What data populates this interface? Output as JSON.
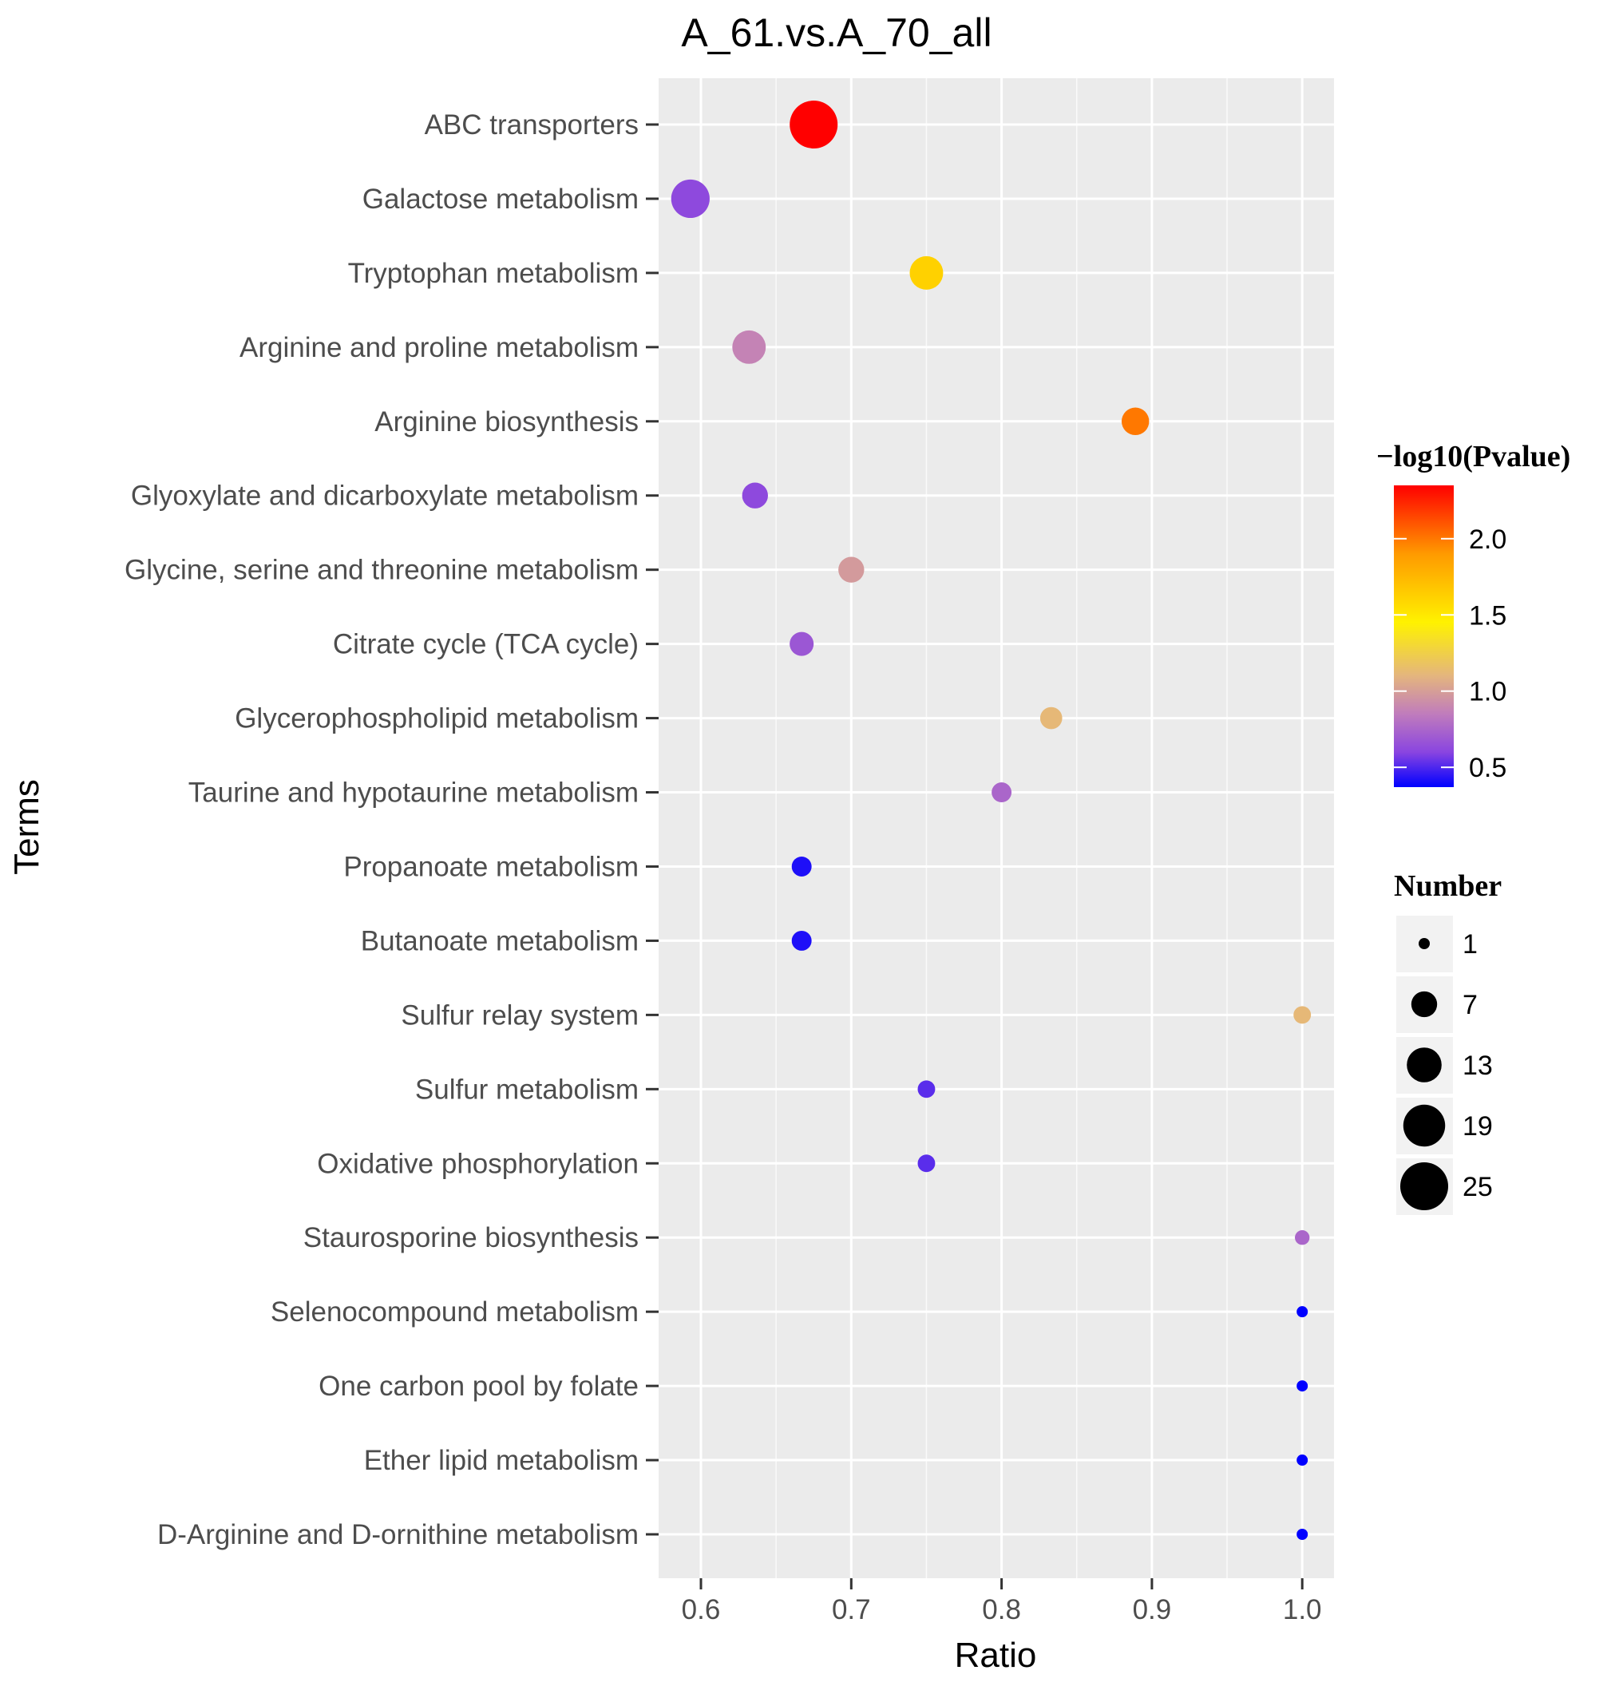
{
  "chart_data": {
    "type": "scatter",
    "title": "A_61.vs.A_70_all",
    "xlabel": "Ratio",
    "ylabel": "Terms",
    "xlim": [
      0.57,
      1.02
    ],
    "xticks": [
      0.6,
      0.7,
      0.8,
      0.9,
      1.0
    ],
    "xtick_labels": [
      "0.6",
      "0.7",
      "0.8",
      "0.9",
      "1.0"
    ],
    "grid": true,
    "legend_position": "right",
    "points": [
      {
        "term": "ABC transporters",
        "ratio": 0.675,
        "number": 25,
        "neglog10p": 2.35
      },
      {
        "term": "Galactose metabolism",
        "ratio": 0.593,
        "number": 16,
        "neglog10p": 0.62
      },
      {
        "term": "Tryptophan metabolism",
        "ratio": 0.75,
        "number": 12,
        "neglog10p": 1.62
      },
      {
        "term": "Arginine and proline metabolism",
        "ratio": 0.632,
        "number": 12,
        "neglog10p": 0.88
      },
      {
        "term": "Arginine biosynthesis",
        "ratio": 0.889,
        "number": 8,
        "neglog10p": 2.0
      },
      {
        "term": "Glyoxylate and dicarboxylate metabolism",
        "ratio": 0.636,
        "number": 7,
        "neglog10p": 0.62
      },
      {
        "term": "Glycine, serine and threonine metabolism",
        "ratio": 0.7,
        "number": 7,
        "neglog10p": 0.98
      },
      {
        "term": "Citrate cycle (TCA cycle)",
        "ratio": 0.667,
        "number": 6,
        "neglog10p": 0.68
      },
      {
        "term": "Glycerophospholipid metabolism",
        "ratio": 0.833,
        "number": 5,
        "neglog10p": 1.12
      },
      {
        "term": "Taurine and hypotaurine metabolism",
        "ratio": 0.8,
        "number": 4,
        "neglog10p": 0.75
      },
      {
        "term": "Propanoate metabolism",
        "ratio": 0.667,
        "number": 4,
        "neglog10p": 0.42
      },
      {
        "term": "Butanoate metabolism",
        "ratio": 0.667,
        "number": 4,
        "neglog10p": 0.42
      },
      {
        "term": "Sulfur relay system",
        "ratio": 1.0,
        "number": 3,
        "neglog10p": 1.12
      },
      {
        "term": "Sulfur metabolism",
        "ratio": 0.75,
        "number": 3,
        "neglog10p": 0.52
      },
      {
        "term": "Oxidative phosphorylation",
        "ratio": 0.75,
        "number": 3,
        "neglog10p": 0.52
      },
      {
        "term": "Staurosporine biosynthesis",
        "ratio": 1.0,
        "number": 2,
        "neglog10p": 0.75
      },
      {
        "term": "Selenocompound metabolism",
        "ratio": 1.0,
        "number": 1,
        "neglog10p": 0.37
      },
      {
        "term": "One carbon pool by folate",
        "ratio": 1.0,
        "number": 1,
        "neglog10p": 0.37
      },
      {
        "term": "Ether lipid metabolism",
        "ratio": 1.0,
        "number": 1,
        "neglog10p": 0.37
      },
      {
        "term": "D-Arginine and D-ornithine metabolism",
        "ratio": 1.0,
        "number": 1,
        "neglog10p": 0.37
      }
    ],
    "color_legend": {
      "title": "−log10(Pvalue)",
      "range": [
        0.37,
        2.35
      ],
      "ticks": [
        2.0,
        1.5,
        1.0,
        0.5
      ],
      "tick_labels": [
        "2.0",
        "1.5",
        "1.0",
        "0.5"
      ],
      "stops": [
        {
          "value": 0.37,
          "color": "#0000ff"
        },
        {
          "value": 0.6,
          "color": "#8a45e0"
        },
        {
          "value": 0.85,
          "color": "#c07cbc"
        },
        {
          "value": 1.1,
          "color": "#e4b57e"
        },
        {
          "value": 1.45,
          "color": "#fff200"
        },
        {
          "value": 1.9,
          "color": "#ff9a00"
        },
        {
          "value": 2.35,
          "color": "#ff0000"
        }
      ]
    },
    "size_legend": {
      "title": "Number",
      "values": [
        1,
        7,
        13,
        19,
        25
      ],
      "labels": [
        "1",
        "7",
        "13",
        "19",
        "25"
      ]
    }
  }
}
